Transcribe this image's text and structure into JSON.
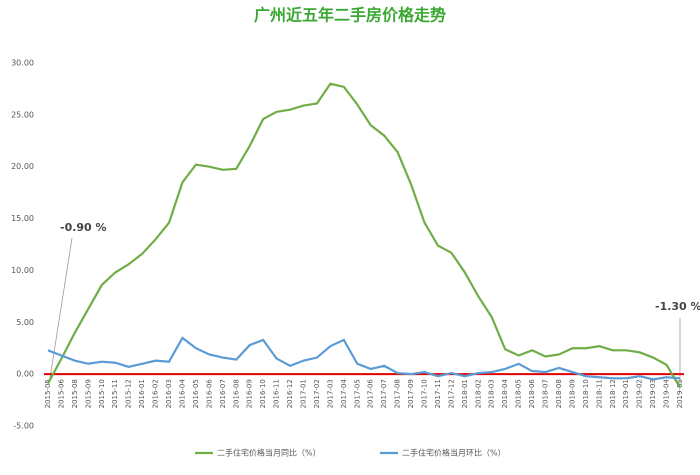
{
  "chart_data": {
    "type": "line",
    "title": "广州近五年二手房价格走势",
    "categories": [
      "2015-05",
      "2015-06",
      "2015-08",
      "2015-09",
      "2015-10",
      "2015-11",
      "2015-12",
      "2016-01",
      "2016-02",
      "2016-03",
      "2016-04",
      "2016-05",
      "2016-06",
      "2016-07",
      "2016-08",
      "2016-09",
      "2016-10",
      "2016-11",
      "2016-12",
      "2017-01",
      "2017-02",
      "2017-03",
      "2017-04",
      "2017-05",
      "2017-06",
      "2017-07",
      "2017-08",
      "2017-09",
      "2017-10",
      "2017-11",
      "2017-12",
      "2018-01",
      "2018-02",
      "2018-03",
      "2018-04",
      "2018-05",
      "2018-06",
      "2018-07",
      "2018-08",
      "2018-09",
      "2018-10",
      "2018-11",
      "2018-12",
      "2019-01",
      "2019-02",
      "2019-03",
      "2019-04",
      "2019-05"
    ],
    "series": [
      {
        "name": "二手住宅价格当月同比（%）",
        "color": "#70ad47",
        "values": [
          -0.9,
          1.5,
          4,
          6.3,
          8.6,
          9.8,
          10.6,
          11.6,
          13,
          14.6,
          18.5,
          20.2,
          20,
          19.7,
          19.8,
          22,
          24.6,
          25.3,
          25.5,
          25.9,
          26.1,
          28,
          27.7,
          26,
          24,
          23,
          21.4,
          18.3,
          14.6,
          12.4,
          11.7,
          9.8,
          7.5,
          5.5,
          2.4,
          1.8,
          2.3,
          1.7,
          1.9,
          2.5,
          2.5,
          2.7,
          2.3,
          2.3,
          2.1,
          1.6,
          0.9,
          -1.3
        ]
      },
      {
        "name": "二手住宅价格当月环比（%）",
        "color": "#5b9bd5",
        "values": [
          2.3,
          1.8,
          1.3,
          1.0,
          1.2,
          1.1,
          0.7,
          1.0,
          1.3,
          1.2,
          3.5,
          2.5,
          1.9,
          1.6,
          1.4,
          2.8,
          3.3,
          1.5,
          0.8,
          1.3,
          1.6,
          2.7,
          3.3,
          1.0,
          0.5,
          0.8,
          0.1,
          0.0,
          0.2,
          -0.2,
          0.1,
          -0.2,
          0.1,
          0.2,
          0.5,
          1.0,
          0.3,
          0.2,
          0.6,
          0.2,
          -0.2,
          -0.3,
          -0.4,
          -0.4,
          -0.2,
          -0.5,
          -0.3,
          -0.4
        ]
      }
    ],
    "annotations": [
      "-0.90 %",
      "-1.30 %"
    ],
    "ylim": [
      -5,
      30
    ],
    "yticks": [
      {
        "value": -5,
        "label": "-5.00"
      },
      {
        "value": 0,
        "label": "0.00"
      },
      {
        "value": 5,
        "label": "5.00"
      },
      {
        "value": 10,
        "label": "10.00"
      },
      {
        "value": 15,
        "label": "15.00"
      },
      {
        "value": 20,
        "label": "20.00"
      },
      {
        "value": 25,
        "label": "25.00"
      },
      {
        "value": 30,
        "label": "30.00"
      }
    ],
    "zero_line_color": "#e00000"
  }
}
